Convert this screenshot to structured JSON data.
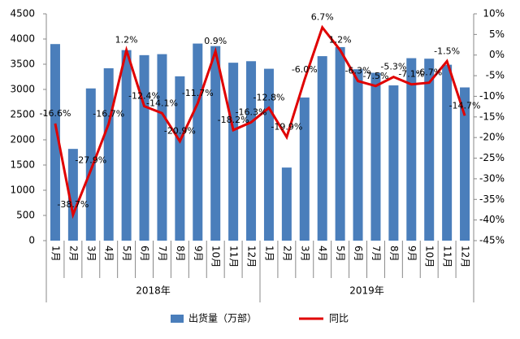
{
  "chart_data": {
    "type": "bar_line",
    "categories": [
      "1月",
      "2月",
      "3月",
      "4月",
      "5月",
      "6月",
      "7月",
      "8月",
      "9月",
      "10月",
      "11月",
      "12月",
      "1月",
      "2月",
      "3月",
      "4月",
      "5月",
      "6月",
      "7月",
      "8月",
      "9月",
      "10月",
      "11月",
      "12月"
    ],
    "x_groups": [
      "2018年",
      "2019年"
    ],
    "series": [
      {
        "name": "出货量（万部）",
        "type": "bar",
        "color": "#4a7ebb",
        "values": [
          3900,
          1820,
          3020,
          3420,
          3780,
          3680,
          3700,
          3260,
          3910,
          3860,
          3530,
          3560,
          3410,
          1450,
          2840,
          3660,
          3840,
          3400,
          3330,
          3080,
          3620,
          3610,
          3490,
          3040
        ]
      },
      {
        "name": "同比",
        "type": "line",
        "axis": "y2",
        "color": "#e00000",
        "values": [
          -16.6,
          -38.7,
          -27.9,
          -16.7,
          1.2,
          -12.4,
          -14.1,
          -20.9,
          -11.7,
          0.9,
          -18.2,
          -16.3,
          -12.8,
          -19.9,
          -6.0,
          6.7,
          1.2,
          -6.3,
          -7.5,
          -5.3,
          -7.1,
          -6.7,
          -1.5,
          -14.7
        ],
        "value_labels": [
          "-16.6%",
          "-38.7%",
          "-27.9%",
          "-16.7%",
          "1.2%",
          "-12.4%",
          "-14.1%",
          "-20.9%",
          "-11.7%",
          "0.9%",
          "-18.2%",
          "-16.3%",
          "-12.8%",
          "-19.9%",
          "-6.0%",
          "6.7%",
          "1.2%",
          "-6.3%",
          "-7.5%",
          "-5.3%",
          "-7.1%",
          "-6.7%",
          "-1.5%",
          "-14.7%"
        ]
      }
    ],
    "ylim": [
      0,
      4500
    ],
    "yticks": [
      0,
      500,
      1000,
      1500,
      2000,
      2500,
      3000,
      3500,
      4000,
      4500
    ],
    "y2lim": [
      -45,
      10
    ],
    "y2ticks": [
      {
        "value": 10,
        "label": "10%"
      },
      {
        "value": 5,
        "label": "5%"
      },
      {
        "value": 0,
        "label": "0%"
      },
      {
        "value": -5,
        "label": "-5%"
      },
      {
        "value": -10,
        "label": "-10%"
      },
      {
        "value": -15,
        "label": "-15%"
      },
      {
        "value": -20,
        "label": "-20%"
      },
      {
        "value": -25,
        "label": "-25%"
      },
      {
        "value": -30,
        "label": "-30%"
      },
      {
        "value": -35,
        "label": "-35%"
      },
      {
        "value": -40,
        "label": "-40%"
      },
      {
        "value": -45,
        "label": "-45%"
      }
    ],
    "legend": "bottom"
  }
}
